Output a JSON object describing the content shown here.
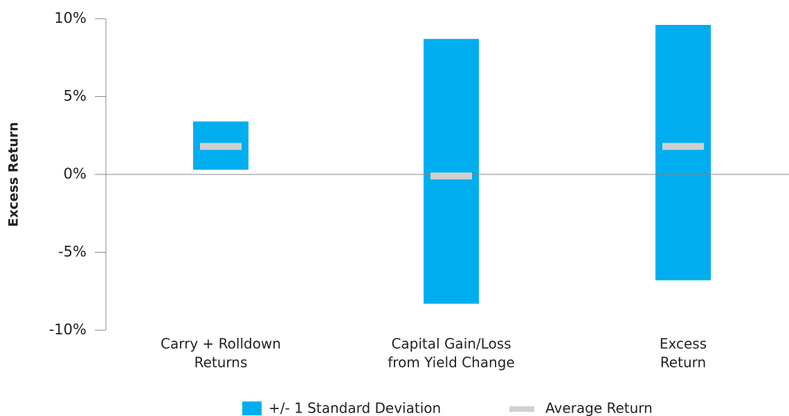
{
  "chart_data": {
    "type": "range-bar",
    "y_label": "Excess Return",
    "categories": [
      [
        "Carry + Rolldown",
        "Returns"
      ],
      [
        "Capital Gain/Loss",
        "from Yield Change"
      ],
      [
        "Excess",
        "Return"
      ]
    ],
    "series": [
      {
        "name": "+/- 1 Standard Deviation",
        "color": "#00aeef",
        "low": [
          0.3,
          -8.3,
          -6.8
        ],
        "high": [
          3.4,
          8.7,
          9.6
        ]
      },
      {
        "name": "Average Return",
        "color": "#d0d0d0",
        "values": [
          1.8,
          -0.1,
          1.8
        ]
      }
    ],
    "ylim": [
      -10,
      10
    ],
    "yticks": [
      {
        "value": -10,
        "label": "-10%"
      },
      {
        "value": -5,
        "label": "-5%"
      },
      {
        "value": 0,
        "label": "0%"
      },
      {
        "value": 5,
        "label": "5%"
      },
      {
        "value": 10,
        "label": "10%"
      }
    ]
  }
}
